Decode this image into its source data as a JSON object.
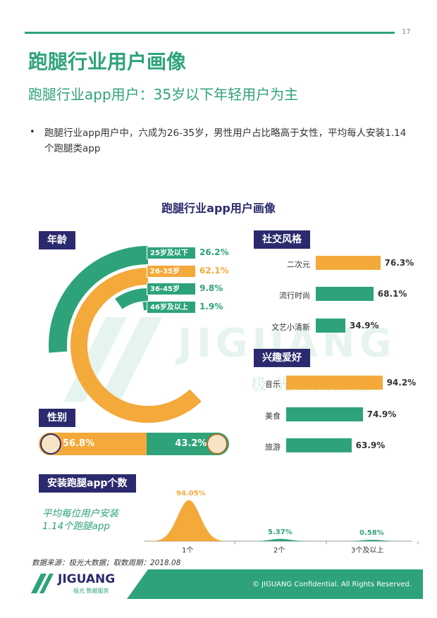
{
  "page_number": "17",
  "title": "跑腿行业用户画像",
  "subtitle": "跑腿行业app用户：35岁以下年轻用户为主",
  "bullet_text": "跑腿行业app用户中，六成为26-35岁，男性用户占比略高于女性，平均每人安装1.14个跑腿类app",
  "chart_title": "跑腿行业app用户画像",
  "sections": {
    "age": "年龄",
    "social": "社交风格",
    "hobby": "兴趣爱好",
    "gender": "性别",
    "install": "安装跑腿app个数"
  },
  "watermark": {
    "main": "JIGUANG",
    "sub": "极光大数据"
  },
  "chart_data": [
    {
      "type": "pie",
      "title": "年龄",
      "categories": [
        "25岁及以下",
        "26-35岁",
        "36-45岁",
        "46岁及以上"
      ],
      "values": [
        26.2,
        62.1,
        9.8,
        1.9
      ],
      "labels": [
        "26.2%",
        "62.1%",
        "9.8%",
        "1.9%"
      ],
      "colors": [
        "#2ea37a",
        "#f4a93b",
        "#2ea37a",
        "#2ea37a"
      ]
    },
    {
      "type": "bar",
      "title": "社交风格",
      "categories": [
        "二次元",
        "流行时尚",
        "文艺小清新"
      ],
      "values": [
        76.3,
        68.1,
        34.9
      ],
      "labels": [
        "76.3%",
        "68.1%",
        "34.9%"
      ],
      "colors": [
        "#f4a93b",
        "#2ea37a",
        "#2ea37a"
      ]
    },
    {
      "type": "bar",
      "title": "兴趣爱好",
      "categories": [
        "音乐",
        "美食",
        "旅游"
      ],
      "values": [
        94.2,
        74.9,
        63.9
      ],
      "labels": [
        "94.2%",
        "74.9%",
        "63.9%"
      ],
      "colors": [
        "#f4a93b",
        "#2ea37a",
        "#2ea37a"
      ]
    },
    {
      "type": "bar",
      "title": "性别",
      "categories": [
        "男",
        "女"
      ],
      "values": [
        56.8,
        43.2
      ],
      "labels": [
        "56.8%",
        "43.2%"
      ],
      "colors": [
        "#f4a93b",
        "#2ea37a"
      ]
    },
    {
      "type": "area",
      "title": "安装跑腿app个数",
      "categories": [
        "1个",
        "2个",
        "3个及以上"
      ],
      "values": [
        94.05,
        5.37,
        0.58
      ],
      "labels": [
        "94.05%",
        "5.37%",
        "0.58%"
      ],
      "colors": [
        "#f4a93b",
        "#2ea37a",
        "#2ea37a"
      ]
    }
  ],
  "avg_note": [
    "平均每位用户安装",
    "1.14个跑腿app"
  ],
  "source": "数据来源：极光大数据；取数周期：2018.08",
  "footer": {
    "logo_text": "JIGUANG",
    "logo_sub": "极光 数据服务",
    "copyright": "© JIGUANG Confidential. All Rights Reserved."
  },
  "colors": {
    "green": "#2ea37a",
    "orange": "#f4a93b",
    "navy": "#2b2a6e"
  }
}
